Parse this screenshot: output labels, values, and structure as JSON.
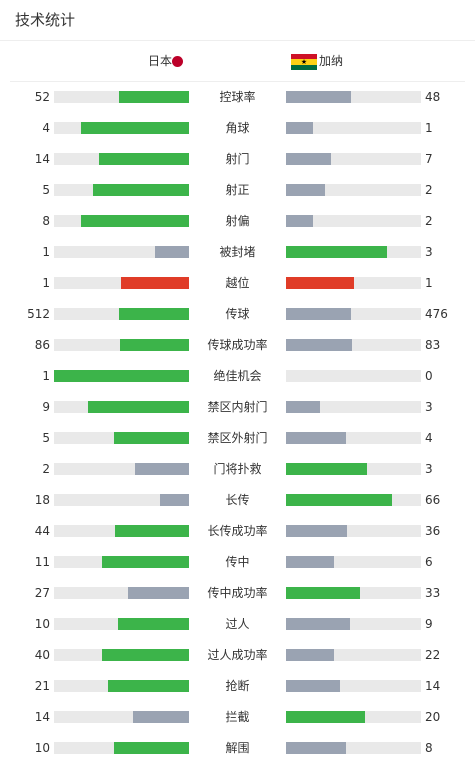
{
  "header": {
    "title": "技术统计"
  },
  "teams": {
    "home": {
      "name": "日本",
      "flag_color": "#bc0029",
      "flag_icon": "japan-flag-icon"
    },
    "away": {
      "name": "加纳",
      "flag_colors": [
        "#ce1126",
        "#fcd116",
        "#006b3f"
      ],
      "flag_star": "★",
      "flag_icon": "ghana-flag-icon"
    }
  },
  "colors": {
    "leader": "#3cb44a",
    "trailer": "#9aa3b2",
    "tie": "#e03c28",
    "track": "#e9e9e9"
  },
  "stats": [
    {
      "label": "控球率",
      "home": "52",
      "away": "48",
      "home_share": 0.52,
      "away_share": 0.48
    },
    {
      "label": "角球",
      "home": "4",
      "away": "1",
      "home_share": 0.8,
      "away_share": 0.2
    },
    {
      "label": "射门",
      "home": "14",
      "away": "7",
      "home_share": 0.667,
      "away_share": 0.333
    },
    {
      "label": "射正",
      "home": "5",
      "away": "2",
      "home_share": 0.714,
      "away_share": 0.286
    },
    {
      "label": "射偏",
      "home": "8",
      "away": "2",
      "home_share": 0.8,
      "away_share": 0.2
    },
    {
      "label": "被封堵",
      "home": "1",
      "away": "3",
      "home_share": 0.25,
      "away_share": 0.75
    },
    {
      "label": "越位",
      "home": "1",
      "away": "1",
      "home_share": 0.5,
      "away_share": 0.5
    },
    {
      "label": "传球",
      "home": "512",
      "away": "476",
      "home_share": 0.518,
      "away_share": 0.482
    },
    {
      "label": "传球成功率",
      "home": "86",
      "away": "83",
      "home_share": 0.509,
      "away_share": 0.491
    },
    {
      "label": "绝佳机会",
      "home": "1",
      "away": "0",
      "home_share": 1.0,
      "away_share": 0.0
    },
    {
      "label": "禁区内射门",
      "home": "9",
      "away": "3",
      "home_share": 0.75,
      "away_share": 0.25
    },
    {
      "label": "禁区外射门",
      "home": "5",
      "away": "4",
      "home_share": 0.556,
      "away_share": 0.444
    },
    {
      "label": "门将扑救",
      "home": "2",
      "away": "3",
      "home_share": 0.4,
      "away_share": 0.6
    },
    {
      "label": "长传",
      "home": "18",
      "away": "66",
      "home_share": 0.214,
      "away_share": 0.786
    },
    {
      "label": "长传成功率",
      "home": "44",
      "away": "36",
      "home_share": 0.55,
      "away_share": 0.45
    },
    {
      "label": "传中",
      "home": "11",
      "away": "6",
      "home_share": 0.647,
      "away_share": 0.353
    },
    {
      "label": "传中成功率",
      "home": "27",
      "away": "33",
      "home_share": 0.45,
      "away_share": 0.55
    },
    {
      "label": "过人",
      "home": "10",
      "away": "9",
      "home_share": 0.526,
      "away_share": 0.474
    },
    {
      "label": "过人成功率",
      "home": "40",
      "away": "22",
      "home_share": 0.645,
      "away_share": 0.355
    },
    {
      "label": "抢断",
      "home": "21",
      "away": "14",
      "home_share": 0.6,
      "away_share": 0.4
    },
    {
      "label": "拦截",
      "home": "14",
      "away": "20",
      "home_share": 0.412,
      "away_share": 0.588
    },
    {
      "label": "解围",
      "home": "10",
      "away": "8",
      "home_share": 0.556,
      "away_share": 0.444
    }
  ]
}
